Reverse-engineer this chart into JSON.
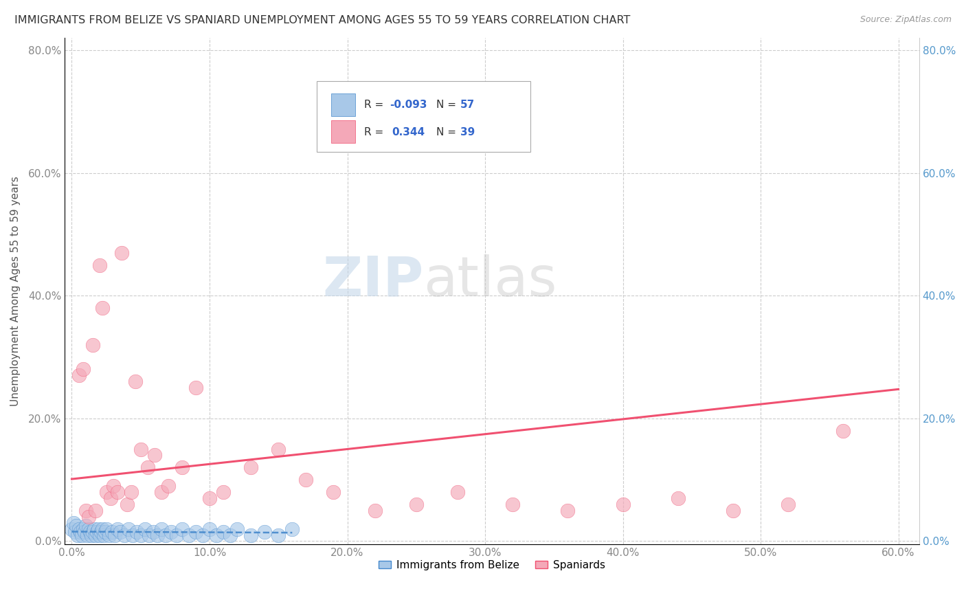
{
  "title": "IMMIGRANTS FROM BELIZE VS SPANIARD UNEMPLOYMENT AMONG AGES 55 TO 59 YEARS CORRELATION CHART",
  "source": "Source: ZipAtlas.com",
  "ylabel": "Unemployment Among Ages 55 to 59 years",
  "xlabel": "",
  "xlim": [
    -0.005,
    0.615
  ],
  "ylim": [
    -0.005,
    0.82
  ],
  "xticks": [
    0.0,
    0.1,
    0.2,
    0.3,
    0.4,
    0.5,
    0.6
  ],
  "yticks": [
    0.0,
    0.2,
    0.4,
    0.6,
    0.8
  ],
  "xtick_labels": [
    "0.0%",
    "10.0%",
    "20.0%",
    "30.0%",
    "40.0%",
    "50.0%",
    "60.0%"
  ],
  "ytick_labels": [
    "0.0%",
    "20.0%",
    "40.0%",
    "60.0%",
    "80.0%"
  ],
  "belize_R": -0.093,
  "belize_N": 57,
  "spaniard_R": 0.344,
  "spaniard_N": 39,
  "belize_color": "#a8c8e8",
  "spaniard_color": "#f4a8b8",
  "belize_line_color": "#4488cc",
  "spaniard_line_color": "#f05070",
  "watermark_zip": "ZIP",
  "watermark_atlas": "atlas",
  "watermark_color_zip": "#c8d8e8",
  "watermark_color_atlas": "#c8c8c8",
  "background_color": "#ffffff",
  "grid_color": "#cccccc",
  "belize_x": [
    0.0,
    0.001,
    0.002,
    0.003,
    0.004,
    0.005,
    0.006,
    0.007,
    0.008,
    0.009,
    0.01,
    0.011,
    0.012,
    0.013,
    0.014,
    0.015,
    0.016,
    0.017,
    0.018,
    0.019,
    0.02,
    0.021,
    0.022,
    0.023,
    0.024,
    0.025,
    0.027,
    0.029,
    0.031,
    0.033,
    0.035,
    0.038,
    0.041,
    0.044,
    0.047,
    0.05,
    0.053,
    0.056,
    0.059,
    0.062,
    0.065,
    0.068,
    0.072,
    0.076,
    0.08,
    0.085,
    0.09,
    0.095,
    0.1,
    0.105,
    0.11,
    0.115,
    0.12,
    0.13,
    0.14,
    0.15,
    0.16
  ],
  "belize_y": [
    0.02,
    0.03,
    0.015,
    0.025,
    0.01,
    0.02,
    0.015,
    0.01,
    0.02,
    0.015,
    0.025,
    0.01,
    0.02,
    0.015,
    0.01,
    0.015,
    0.02,
    0.01,
    0.015,
    0.02,
    0.01,
    0.015,
    0.02,
    0.01,
    0.015,
    0.02,
    0.01,
    0.015,
    0.01,
    0.02,
    0.015,
    0.01,
    0.02,
    0.01,
    0.015,
    0.01,
    0.02,
    0.01,
    0.015,
    0.01,
    0.02,
    0.01,
    0.015,
    0.01,
    0.02,
    0.01,
    0.015,
    0.01,
    0.02,
    0.01,
    0.015,
    0.01,
    0.02,
    0.01,
    0.015,
    0.01,
    0.02
  ],
  "spaniard_x": [
    0.005,
    0.008,
    0.01,
    0.012,
    0.015,
    0.017,
    0.02,
    0.022,
    0.025,
    0.028,
    0.03,
    0.033,
    0.036,
    0.04,
    0.043,
    0.046,
    0.05,
    0.055,
    0.06,
    0.065,
    0.07,
    0.08,
    0.09,
    0.1,
    0.11,
    0.13,
    0.15,
    0.17,
    0.19,
    0.22,
    0.25,
    0.28,
    0.32,
    0.36,
    0.4,
    0.44,
    0.48,
    0.52,
    0.56
  ],
  "spaniard_y": [
    0.27,
    0.28,
    0.05,
    0.04,
    0.32,
    0.05,
    0.45,
    0.38,
    0.08,
    0.07,
    0.09,
    0.08,
    0.47,
    0.06,
    0.08,
    0.26,
    0.15,
    0.12,
    0.14,
    0.08,
    0.09,
    0.12,
    0.25,
    0.07,
    0.08,
    0.12,
    0.15,
    0.1,
    0.08,
    0.05,
    0.06,
    0.08,
    0.06,
    0.05,
    0.06,
    0.07,
    0.05,
    0.06,
    0.18
  ],
  "legend_R_color": "#3366cc",
  "legend_N_color": "#3366cc"
}
